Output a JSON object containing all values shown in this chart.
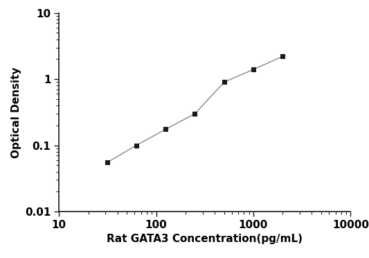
{
  "x": [
    31.25,
    62.5,
    125,
    250,
    500,
    1000,
    2000
  ],
  "y": [
    0.055,
    0.1,
    0.175,
    0.3,
    0.9,
    1.4,
    2.2
  ],
  "xlabel": "Rat GATA3 Concentration(pg/mL)",
  "ylabel": "Optical Density",
  "xlim": [
    10,
    10000
  ],
  "ylim": [
    0.01,
    10
  ],
  "marker": "s",
  "marker_color": "#1a1a1a",
  "line_color": "#888888",
  "marker_size": 5,
  "line_width": 1.0,
  "background_color": "#ffffff",
  "xlabel_fontsize": 11,
  "ylabel_fontsize": 11,
  "tick_fontsize": 11,
  "figsize": [
    5.33,
    3.72
  ],
  "dpi": 100,
  "xticks": [
    10,
    100,
    1000,
    10000
  ],
  "xticklabels": [
    "10",
    "100",
    "1000",
    "10000"
  ],
  "yticks": [
    0.01,
    0.1,
    1,
    10
  ],
  "yticklabels": [
    "0.01",
    "0.1",
    "1",
    "10"
  ]
}
